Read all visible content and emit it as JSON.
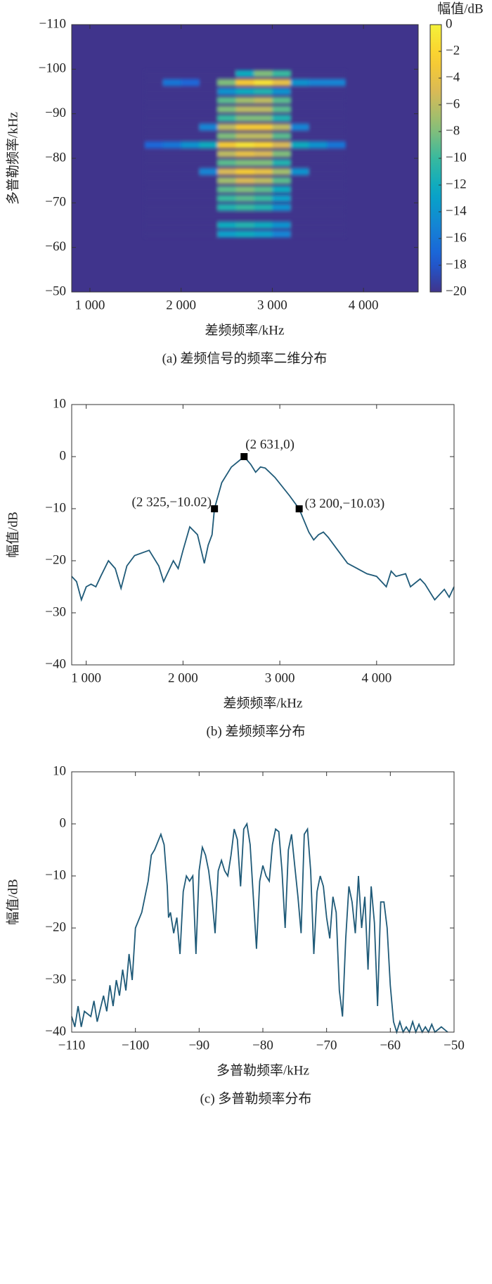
{
  "chart_data": [
    {
      "type": "heatmap",
      "caption": "(a) 差频信号的频率二维分布",
      "xlabel": "差频频率/kHz",
      "ylabel": "多普勒频率/kHz",
      "colorbar_label": "幅值/dB",
      "colormap": "parula",
      "xlim": [
        800,
        4600
      ],
      "xticks": [
        {
          "value": 1000,
          "label": "1 000"
        },
        {
          "value": 2000,
          "label": "2 000"
        },
        {
          "value": 3000,
          "label": "3 000"
        },
        {
          "value": 4000,
          "label": "4 000"
        }
      ],
      "ylim": [
        -50,
        -110
      ],
      "yticks": [
        {
          "value": -110,
          "label": "−110"
        },
        {
          "value": -100,
          "label": "−100"
        },
        {
          "value": -90,
          "label": "−90"
        },
        {
          "value": -80,
          "label": "−80"
        },
        {
          "value": -70,
          "label": "−70"
        },
        {
          "value": -60,
          "label": "−60"
        },
        {
          "value": -50,
          "label": "−50"
        }
      ],
      "clim": [
        -20,
        0
      ],
      "cticks": [
        0,
        {
          "value": -2,
          "label": "−2"
        },
        {
          "value": -4,
          "label": "−4"
        },
        {
          "value": -6,
          "label": "−6"
        },
        {
          "value": -8,
          "label": "−8"
        },
        {
          "value": -10,
          "label": "−10"
        },
        {
          "value": -12,
          "label": "−12"
        },
        {
          "value": -14,
          "label": "−14"
        },
        {
          "value": -16,
          "label": "−16"
        },
        {
          "value": -18,
          "label": "−18"
        },
        {
          "value": -20,
          "label": "−20"
        }
      ],
      "x_edges": [
        1600,
        1800,
        2000,
        2200,
        2400,
        2600,
        2800,
        3000,
        3200,
        3400,
        3600,
        3800
      ],
      "y_edges": [
        -100,
        -98,
        -96,
        -94,
        -92,
        -90,
        -88,
        -86,
        -84,
        -82,
        -80,
        -78,
        -76,
        -74,
        -72,
        -70,
        -68,
        -66,
        -64,
        -62
      ],
      "values": [
        [
          -20,
          -20,
          -20,
          -20,
          -20,
          -12,
          -8,
          -10,
          -20,
          -20,
          -20
        ],
        [
          -20,
          -16,
          -17,
          -20,
          -8,
          -3,
          -1,
          -4,
          -14,
          -15,
          -15
        ],
        [
          -20,
          -20,
          -20,
          -20,
          -14,
          -12,
          -11,
          -14,
          -20,
          -20,
          -20
        ],
        [
          -20,
          -20,
          -20,
          -20,
          -9,
          -7,
          -6,
          -9,
          -20,
          -20,
          -20
        ],
        [
          -20,
          -20,
          -20,
          -20,
          -8,
          -6,
          -6,
          -9,
          -20,
          -20,
          -20
        ],
        [
          -20,
          -20,
          -20,
          -20,
          -10,
          -8,
          -8,
          -11,
          -20,
          -20,
          -20
        ],
        [
          -20,
          -20,
          -20,
          -15,
          -6,
          -3,
          -3,
          -6,
          -15,
          -20,
          -20
        ],
        [
          -20,
          -20,
          -20,
          -20,
          -8,
          -6,
          -6,
          -9,
          -20,
          -20,
          -20
        ],
        [
          -17,
          -16,
          -14,
          -12,
          -3,
          -1,
          -2,
          -5,
          -12,
          -14,
          -16
        ],
        [
          -20,
          -20,
          -20,
          -20,
          -6,
          -4,
          -5,
          -8,
          -20,
          -20,
          -20
        ],
        [
          -20,
          -20,
          -20,
          -20,
          -9,
          -8,
          -8,
          -11,
          -20,
          -20,
          -20
        ],
        [
          -20,
          -20,
          -20,
          -15,
          -5,
          -3,
          -4,
          -7,
          -14,
          -20,
          -20
        ],
        [
          -20,
          -20,
          -20,
          -20,
          -7,
          -5,
          -6,
          -9,
          -20,
          -20,
          -20
        ],
        [
          -20,
          -20,
          -20,
          -20,
          -9,
          -8,
          -9,
          -12,
          -20,
          -20,
          -20
        ],
        [
          -20,
          -20,
          -20,
          -20,
          -10,
          -9,
          -10,
          -13,
          -20,
          -20,
          -20
        ],
        [
          -20,
          -20,
          -20,
          -20,
          -11,
          -10,
          -11,
          -14,
          -20,
          -20,
          -20
        ],
        [
          -20,
          -20,
          -20,
          -20,
          -20,
          -20,
          -20,
          -20,
          -20,
          -20,
          -20
        ],
        [
          -20,
          -20,
          -20,
          -20,
          -12,
          -11,
          -12,
          -14,
          -20,
          -20,
          -20
        ],
        [
          -20,
          -20,
          -20,
          -20,
          -13,
          -12,
          -13,
          -15,
          -20,
          -20,
          -20
        ]
      ]
    },
    {
      "type": "line",
      "caption": "(b) 差频频率分布",
      "xlabel": "差频频率/kHz",
      "ylabel": "幅值/dB",
      "color": "#1f5a78",
      "xlim": [
        850,
        4800
      ],
      "xticks": [
        {
          "value": 1000,
          "label": "1 000"
        },
        {
          "value": 2000,
          "label": "2 000"
        },
        {
          "value": 3000,
          "label": "3 000"
        },
        {
          "value": 4000,
          "label": "4 000"
        }
      ],
      "ylim": [
        -40,
        10
      ],
      "yticks": [
        10,
        0,
        {
          "value": -10,
          "label": "−10"
        },
        {
          "value": -20,
          "label": "−20"
        },
        {
          "value": -30,
          "label": "−30"
        },
        {
          "value": -40,
          "label": "−40"
        }
      ],
      "x": [
        850,
        900,
        950,
        1000,
        1050,
        1100,
        1150,
        1230,
        1300,
        1360,
        1420,
        1500,
        1650,
        1750,
        1800,
        1900,
        1950,
        2000,
        2070,
        2150,
        2220,
        2260,
        2300,
        2325,
        2400,
        2500,
        2631,
        2700,
        2750,
        2800,
        2850,
        2950,
        3100,
        3200,
        3300,
        3350,
        3400,
        3450,
        3500,
        3600,
        3700,
        3800,
        3900,
        4000,
        4100,
        4150,
        4200,
        4300,
        4350,
        4450,
        4500,
        4600,
        4700,
        4750,
        4800
      ],
      "values": [
        -23,
        -24,
        -27.5,
        -25,
        -24.5,
        -25,
        -23,
        -20,
        -21.5,
        -25.3,
        -21,
        -19,
        -18,
        -21,
        -24,
        -20,
        -21.5,
        -18,
        -13.5,
        -15,
        -20.5,
        -17,
        -15,
        -10.02,
        -5,
        -2,
        0,
        -1.5,
        -3,
        -2,
        -2.2,
        -4,
        -7.5,
        -10.03,
        -14.5,
        -16,
        -15,
        -14.5,
        -15.5,
        -18,
        -20.5,
        -21.5,
        -22.5,
        -23,
        -25,
        -22,
        -23,
        -22.5,
        -25,
        -23.5,
        -24.5,
        -27.5,
        -25.5,
        -27,
        -25
      ],
      "annotations": [
        {
          "x": 2325,
          "y": -10.02,
          "label": "(2 325,−10.02)"
        },
        {
          "x": 2631,
          "y": 0,
          "label": "(2 631,0)"
        },
        {
          "x": 3200,
          "y": -10.03,
          "label": "(3 200,−10.03)"
        }
      ]
    },
    {
      "type": "line",
      "caption": "(c) 多普勒频率分布",
      "xlabel": "多普勒频率/kHz",
      "ylabel": "幅值/dB",
      "color": "#1f5a78",
      "xlim": [
        -110,
        -50
      ],
      "xticks": [
        {
          "value": -110,
          "label": "−110"
        },
        {
          "value": -100,
          "label": "−100"
        },
        {
          "value": -90,
          "label": "−90"
        },
        {
          "value": -80,
          "label": "−80"
        },
        {
          "value": -70,
          "label": "−70"
        },
        {
          "value": -60,
          "label": "−60"
        },
        {
          "value": -50,
          "label": "−50"
        }
      ],
      "ylim": [
        -40,
        10
      ],
      "yticks": [
        10,
        0,
        {
          "value": -10,
          "label": "−10"
        },
        {
          "value": -20,
          "label": "−20"
        },
        {
          "value": -30,
          "label": "−30"
        },
        {
          "value": -40,
          "label": "−40"
        }
      ],
      "x": [
        -110,
        -109.5,
        -109,
        -108.5,
        -108,
        -107,
        -106.5,
        -106,
        -105,
        -104.5,
        -104,
        -103.5,
        -103,
        -102.5,
        -102,
        -101.5,
        -101,
        -100.5,
        -100,
        -99,
        -98,
        -97.5,
        -97,
        -96,
        -95.5,
        -95,
        -94.8,
        -94.5,
        -94,
        -93.5,
        -93,
        -92.5,
        -92,
        -91.5,
        -91,
        -90.5,
        -90,
        -89.5,
        -89,
        -88.5,
        -88,
        -87.5,
        -87,
        -86.5,
        -86,
        -85.5,
        -85,
        -84.5,
        -84,
        -83.5,
        -83,
        -82.5,
        -82,
        -81.5,
        -81,
        -80.5,
        -80,
        -79.5,
        -79,
        -78.5,
        -78,
        -77.5,
        -77,
        -76.5,
        -76,
        -75.5,
        -75,
        -74.5,
        -74,
        -73.5,
        -73,
        -72.5,
        -72,
        -71.5,
        -71,
        -70.5,
        -70,
        -69.5,
        -69,
        -68.5,
        -68,
        -67.5,
        -67,
        -66.5,
        -66,
        -65.5,
        -65,
        -64.5,
        -64,
        -63.5,
        -63,
        -62.5,
        -62,
        -61.5,
        -61,
        -60.5,
        -60,
        -59.5,
        -59,
        -58.5,
        -58,
        -57.5,
        -57,
        -56.5,
        -56,
        -55.5,
        -55,
        -54.5,
        -54,
        -53.5,
        -53,
        -52,
        -51
      ],
      "values": [
        -37,
        -39,
        -35,
        -39,
        -36,
        -37,
        -34,
        -38,
        -33,
        -36,
        -31,
        -35,
        -30,
        -33,
        -28,
        -32,
        -25,
        -30,
        -20,
        -17,
        -11,
        -6,
        -5,
        -2,
        -4,
        -12,
        -18,
        -17,
        -21,
        -18,
        -25,
        -13,
        -10,
        -11,
        -10,
        -25,
        -9,
        -4.5,
        -6,
        -9,
        -14,
        -21,
        -9,
        -7,
        -9,
        -10,
        -6,
        -1,
        -3,
        -12,
        -1,
        0,
        -4,
        -14,
        -24,
        -11,
        -8,
        -10,
        -11,
        -4,
        -1,
        -1.5,
        -9,
        -20,
        -5,
        -2,
        -8,
        -14,
        -21,
        -2,
        -1,
        -9,
        -25,
        -13,
        -10,
        -12,
        -18,
        -22,
        -14,
        -17,
        -32,
        -37,
        -22,
        -12,
        -15,
        -21,
        -10,
        -20,
        -14,
        -28,
        -12,
        -19,
        -35,
        -15,
        -15,
        -20,
        -31,
        -38,
        -40,
        -38,
        -40,
        -39,
        -40,
        -38,
        -40,
        -38.5,
        -40,
        -39,
        -40,
        -38.5,
        -40,
        -39,
        -40
      ]
    }
  ]
}
